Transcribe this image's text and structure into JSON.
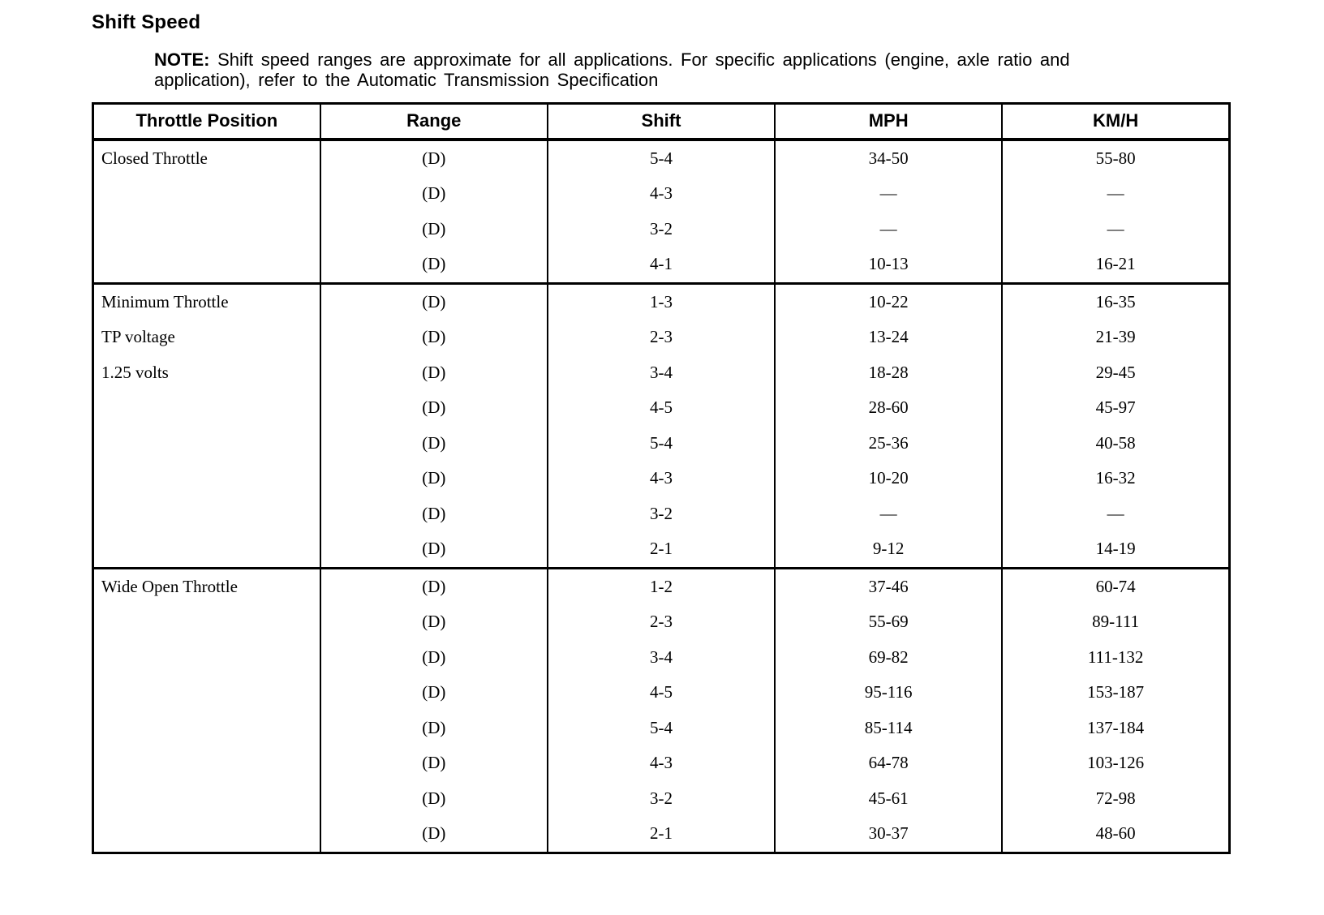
{
  "page": {
    "title": "Shift Speed",
    "note_label": "NOTE:",
    "note_text": " Shift speed ranges are approximate for all applications. For specific applications (engine, axle ratio and application), refer to the Automatic Transmission Specification"
  },
  "table": {
    "headers": [
      "Throttle Position",
      "Range",
      "Shift",
      "MPH",
      "KM/H"
    ],
    "sections": [
      {
        "label_lines": [
          "Closed Throttle"
        ],
        "rows": [
          {
            "range": "(D)",
            "shift": "5-4",
            "mph": "34-50",
            "kmh": "55-80"
          },
          {
            "range": "(D)",
            "shift": "4-3",
            "mph": "—",
            "kmh": "—"
          },
          {
            "range": "(D)",
            "shift": "3-2",
            "mph": "—",
            "kmh": "—"
          },
          {
            "range": "(D)",
            "shift": "4-1",
            "mph": "10-13",
            "kmh": "16-21"
          }
        ]
      },
      {
        "label_lines": [
          "Minimum Throttle",
          "TP voltage",
          "1.25 volts"
        ],
        "rows": [
          {
            "range": "(D)",
            "shift": "1-3",
            "mph": "10-22",
            "kmh": "16-35"
          },
          {
            "range": "(D)",
            "shift": "2-3",
            "mph": "13-24",
            "kmh": "21-39"
          },
          {
            "range": "(D)",
            "shift": "3-4",
            "mph": "18-28",
            "kmh": "29-45"
          },
          {
            "range": "(D)",
            "shift": "4-5",
            "mph": "28-60",
            "kmh": "45-97"
          },
          {
            "range": "(D)",
            "shift": "5-4",
            "mph": "25-36",
            "kmh": "40-58"
          },
          {
            "range": "(D)",
            "shift": "4-3",
            "mph": "10-20",
            "kmh": "16-32"
          },
          {
            "range": "(D)",
            "shift": "3-2",
            "mph": "—",
            "kmh": "—"
          },
          {
            "range": "(D)",
            "shift": "2-1",
            "mph": "9-12",
            "kmh": "14-19"
          }
        ]
      },
      {
        "label_lines": [
          "Wide Open Throttle"
        ],
        "rows": [
          {
            "range": "(D)",
            "shift": "1-2",
            "mph": "37-46",
            "kmh": "60-74"
          },
          {
            "range": "(D)",
            "shift": "2-3",
            "mph": "55-69",
            "kmh": "89-111"
          },
          {
            "range": "(D)",
            "shift": "3-4",
            "mph": "69-82",
            "kmh": "111-132"
          },
          {
            "range": "(D)",
            "shift": "4-5",
            "mph": "95-116",
            "kmh": "153-187"
          },
          {
            "range": "(D)",
            "shift": "5-4",
            "mph": "85-114",
            "kmh": "137-184"
          },
          {
            "range": "(D)",
            "shift": "4-3",
            "mph": "64-78",
            "kmh": "103-126"
          },
          {
            "range": "(D)",
            "shift": "3-2",
            "mph": "45-61",
            "kmh": "72-98"
          },
          {
            "range": "(D)",
            "shift": "2-1",
            "mph": "30-37",
            "kmh": "48-60"
          }
        ]
      }
    ]
  }
}
